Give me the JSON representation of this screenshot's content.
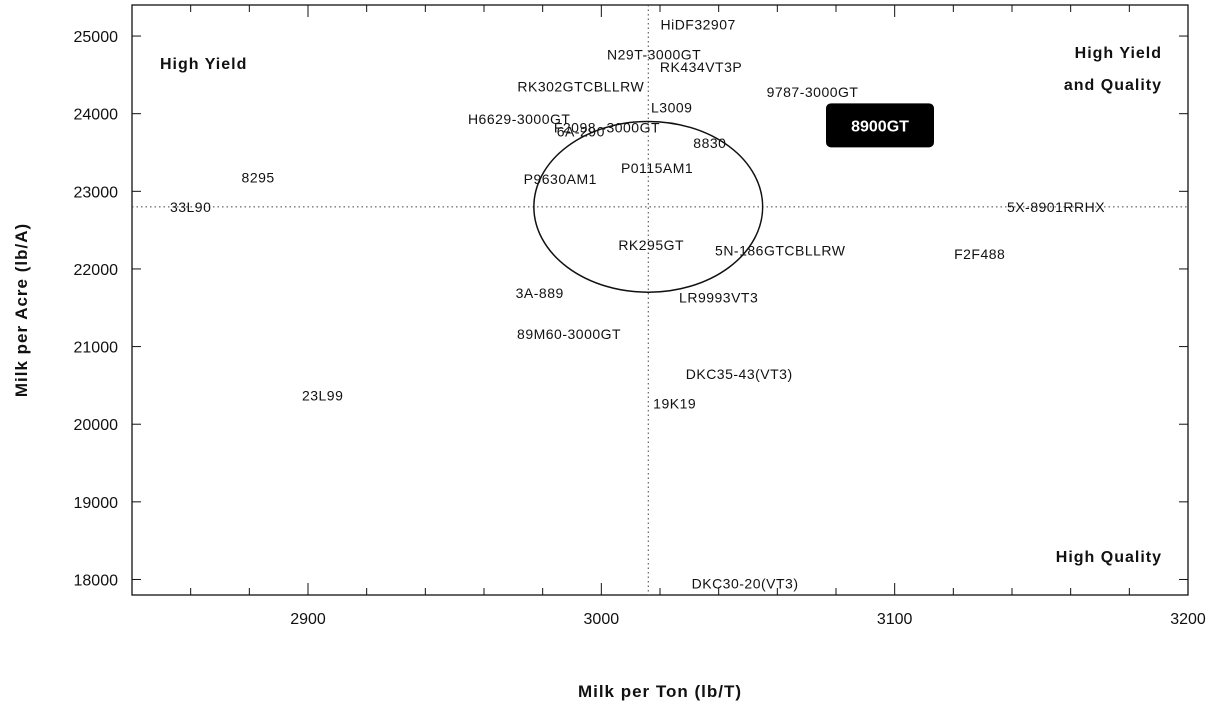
{
  "chart_data": {
    "type": "scatter",
    "title": "",
    "xlabel": "Milk per Ton (lb/T)",
    "ylabel": "Milk per Acre (lb/A)",
    "xlim": [
      2840,
      3200
    ],
    "ylim": [
      17800,
      25400
    ],
    "x_ticks": [
      2900,
      3000,
      3100,
      3200
    ],
    "y_ticks": [
      18000,
      19000,
      20000,
      21000,
      22000,
      23000,
      24000,
      25000
    ],
    "mean_x": 3016,
    "mean_y": 22800,
    "grid": false,
    "quadrant_labels": {
      "top_left": "High Yield",
      "top_right_1": "High Yield",
      "top_right_2": "and Quality",
      "bottom_right": "High Quality"
    },
    "ellipse": {
      "cx": 3016,
      "cy": 22800,
      "rx": 39,
      "ry": 1100
    },
    "highlight": {
      "label": "8900GT",
      "x": 3095,
      "y": 23850
    },
    "points": [
      {
        "label": "HiDF32907",
        "x": 3033,
        "y": 25150
      },
      {
        "label": "N29T-3000GT",
        "x": 3018,
        "y": 24760
      },
      {
        "label": "RK434VT3P",
        "x": 3034,
        "y": 24600
      },
      {
        "label": "RK302GTCBLLRW",
        "x": 2993,
        "y": 24350
      },
      {
        "label": "9787-3000GT",
        "x": 3072,
        "y": 24280
      },
      {
        "label": "L3009",
        "x": 3024,
        "y": 24080
      },
      {
        "label": "H6629-3000GT",
        "x": 2972,
        "y": 23930
      },
      {
        "label": "F2098",
        "x": 2991,
        "y": 23820
      },
      {
        "label": "-3000GT",
        "x": 3010,
        "y": 23820
      },
      {
        "label": "6A-290",
        "x": 2993,
        "y": 23770
      },
      {
        "label": "8830",
        "x": 3037,
        "y": 23620
      },
      {
        "label": "8295",
        "x": 2883,
        "y": 23180
      },
      {
        "label": "P0115AM1",
        "x": 3019,
        "y": 23300
      },
      {
        "label": "P9630AM1",
        "x": 2986,
        "y": 23160
      },
      {
        "label": "33L90",
        "x": 2860,
        "y": 22800
      },
      {
        "label": "5X-8901RRHX",
        "x": 3155,
        "y": 22800
      },
      {
        "label": "RK295GT",
        "x": 3017,
        "y": 22310
      },
      {
        "label": "5N-186GTCBLLRW",
        "x": 3061,
        "y": 22240
      },
      {
        "label": "F2F488",
        "x": 3129,
        "y": 22190
      },
      {
        "label": "3A-889",
        "x": 2979,
        "y": 21690
      },
      {
        "label": "LR9993VT3",
        "x": 3040,
        "y": 21630
      },
      {
        "label": "89M60-3000GT",
        "x": 2989,
        "y": 21160
      },
      {
        "label": "DKC35-43(VT3)",
        "x": 3047,
        "y": 20650
      },
      {
        "label": "23L99",
        "x": 2905,
        "y": 20370
      },
      {
        "label": "19K19",
        "x": 3025,
        "y": 20270
      },
      {
        "label": "DKC30-20(VT3)",
        "x": 3049,
        "y": 17950
      }
    ]
  }
}
